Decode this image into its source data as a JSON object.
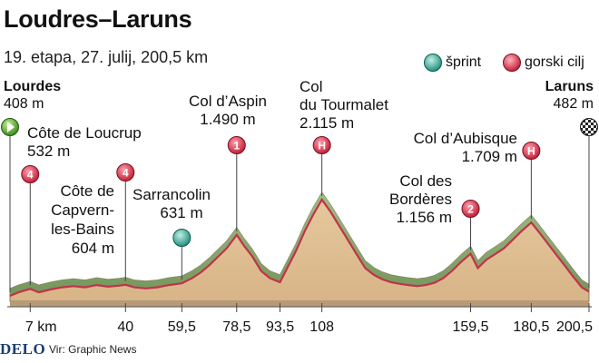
{
  "header": {
    "title": "Loudres–Laruns",
    "subtitle": "19. etapa, 27. julij, 200,5 km"
  },
  "legend": {
    "sprint_label": "šprint",
    "climb_label": "gorski cilj",
    "sprint_color": "#3fb0a0",
    "climb_color": "#d9344a"
  },
  "start": {
    "name": "Lourdes",
    "elevation": "408 m"
  },
  "finish": {
    "name": "Laruns",
    "elevation": "482 m"
  },
  "points": [
    {
      "id": "loucrup",
      "lines": [
        "Côte de Loucrup",
        "532 m"
      ],
      "kind": "climb",
      "badge": "4"
    },
    {
      "id": "capvern",
      "lines": [
        "Côte de",
        "Capvern-",
        "les-Bains",
        "604 m"
      ],
      "kind": "climb",
      "badge": "4"
    },
    {
      "id": "sarrancolin",
      "lines": [
        "Sarrancolin",
        "631 m"
      ],
      "kind": "sprint",
      "badge": ""
    },
    {
      "id": "aspin",
      "lines": [
        "Col d’Aspin",
        "1.490 m"
      ],
      "kind": "climb",
      "badge": "1"
    },
    {
      "id": "tourmalet",
      "lines": [
        "Col",
        "du Tourmalet",
        "2.115 m"
      ],
      "kind": "climb",
      "badge": "H"
    },
    {
      "id": "borderes",
      "lines": [
        "Col des",
        "Bordères",
        "1.156 m"
      ],
      "kind": "climb",
      "badge": "2"
    },
    {
      "id": "aubisque",
      "lines": [
        "Col d’Aubisque",
        "1.709 m"
      ],
      "kind": "climb",
      "badge": "H"
    }
  ],
  "footer": {
    "logo": "DELO",
    "source": "Vir: Graphic News"
  },
  "chart_data": {
    "type": "area",
    "title": "Loudres–Laruns",
    "xlabel": "",
    "ylabel": "",
    "x_unit": "km",
    "xlim": [
      0,
      200.5
    ],
    "ticks": [
      {
        "value": 7,
        "label": "7 km"
      },
      {
        "value": 40,
        "label": "40"
      },
      {
        "value": 59.5,
        "label": "59,5"
      },
      {
        "value": 78.5,
        "label": "78,5"
      },
      {
        "value": 93.5,
        "label": "93,5"
      },
      {
        "value": 108,
        "label": "108"
      },
      {
        "value": 159.5,
        "label": "159,5"
      },
      {
        "value": 180.5,
        "label": "180,5"
      },
      {
        "value": 200.5,
        "label": "200,5"
      }
    ],
    "markers": [
      {
        "id": "loucrup",
        "km": 7,
        "elevation": 532
      },
      {
        "id": "capvern",
        "km": 40,
        "elevation": 604
      },
      {
        "id": "sarrancolin",
        "km": 59.5,
        "elevation": 631
      },
      {
        "id": "aspin",
        "km": 78.5,
        "elevation": 1490
      },
      {
        "id": "tourmalet",
        "km": 108,
        "elevation": 2115
      },
      {
        "id": "borderes",
        "km": 159.5,
        "elevation": 1156
      },
      {
        "id": "aubisque",
        "km": 180.5,
        "elevation": 1709
      }
    ],
    "profile_km": [
      0,
      3,
      7,
      10,
      14,
      18,
      22,
      26,
      30,
      34,
      38,
      40,
      43,
      47,
      51,
      55,
      59.5,
      63,
      66,
      69,
      72,
      75,
      78.5,
      81,
      84,
      87,
      90,
      93.5,
      96,
      99,
      102,
      105,
      108,
      111,
      114,
      117,
      120,
      123,
      126,
      129,
      132,
      135,
      138,
      141,
      144,
      147,
      150,
      153,
      156,
      159.5,
      162,
      165,
      168,
      171,
      174,
      177,
      180.5,
      183,
      186,
      189,
      192,
      195,
      198,
      200.5
    ],
    "profile_m": [
      408,
      470,
      532,
      470,
      520,
      560,
      580,
      560,
      600,
      570,
      590,
      604,
      560,
      540,
      560,
      600,
      631,
      720,
      820,
      950,
      1100,
      1250,
      1490,
      1300,
      1100,
      850,
      720,
      650,
      900,
      1200,
      1550,
      1850,
      2115,
      1900,
      1650,
      1400,
      1150,
      900,
      780,
      700,
      650,
      620,
      600,
      580,
      600,
      640,
      720,
      850,
      1000,
      1156,
      900,
      1050,
      1150,
      1250,
      1400,
      1550,
      1709,
      1550,
      1350,
      1150,
      950,
      750,
      560,
      482
    ]
  }
}
